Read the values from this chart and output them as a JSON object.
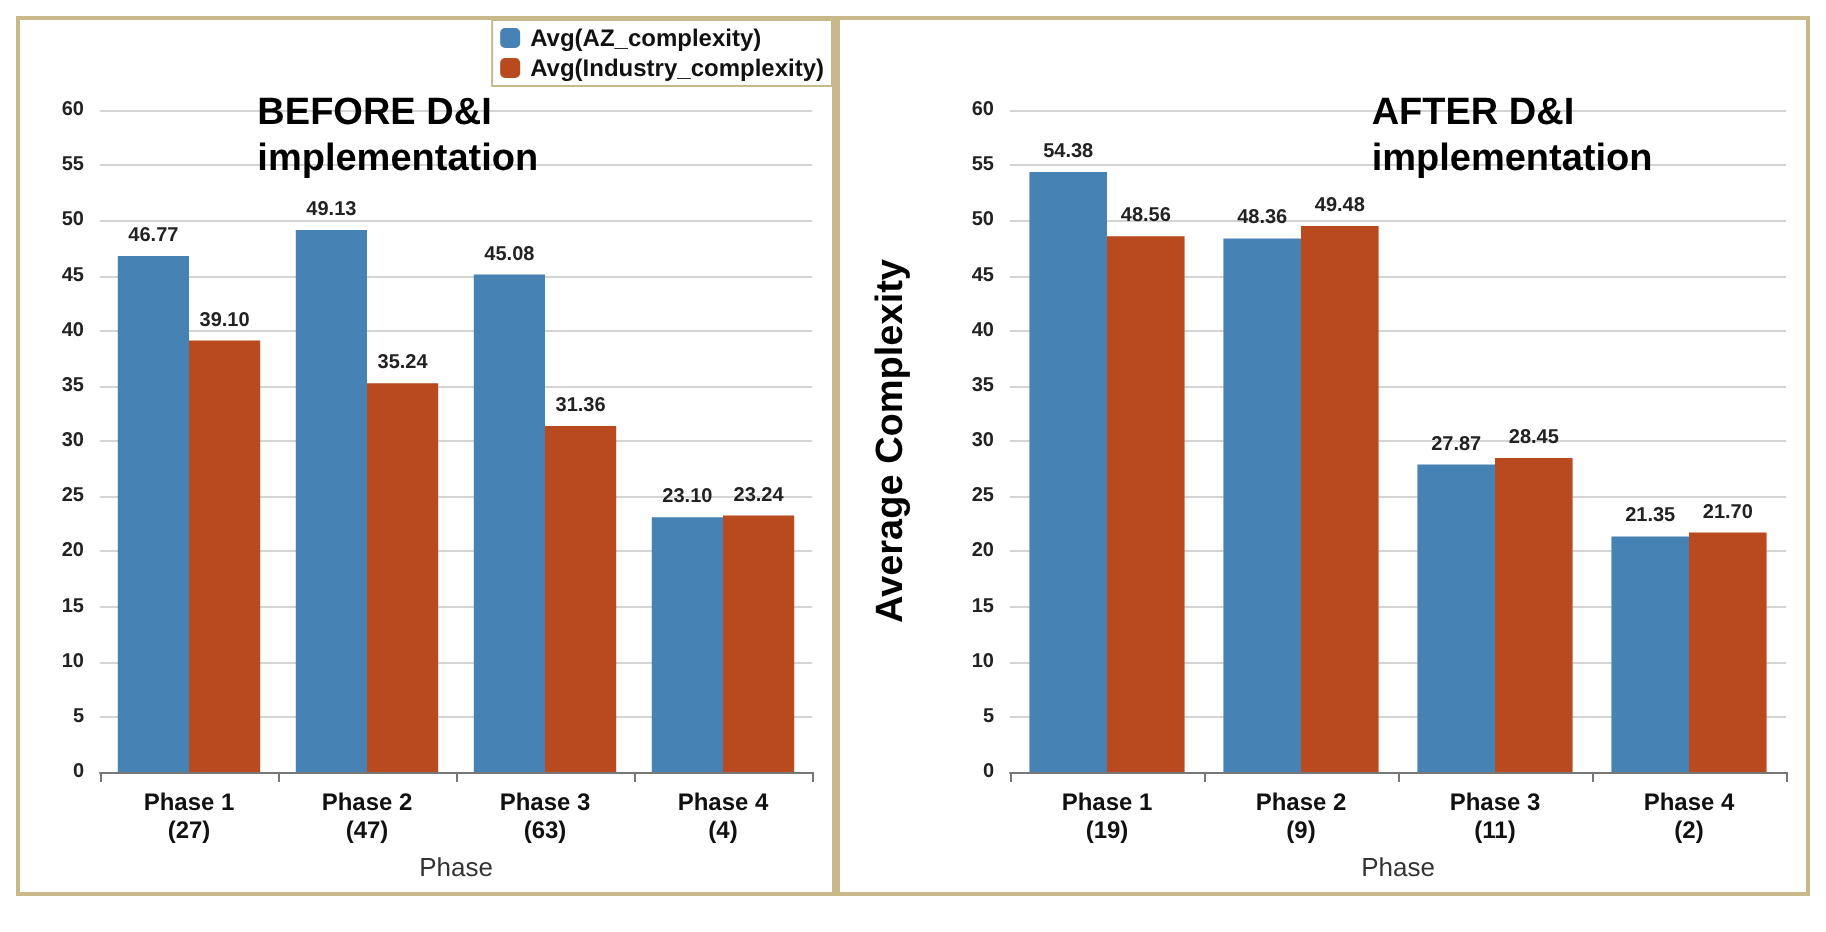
{
  "chart_data": [
    {
      "type": "bar",
      "title": "BEFORE D&I\nimplementation",
      "xlabel": "Phase",
      "categories": [
        "Phase 1\n(27)",
        "Phase 2\n(47)",
        "Phase 3\n(63)",
        "Phase 4\n(4)"
      ],
      "series": [
        {
          "name": "Avg(AZ_complexity)",
          "color": "#4682b4",
          "values": [
            46.77,
            49.13,
            45.08,
            23.1
          ],
          "value_labels": [
            "46.77",
            "49.13",
            "45.08",
            "23.10"
          ]
        },
        {
          "name": "Avg(Industry_complexity)",
          "color": "#b94a20",
          "values": [
            39.1,
            35.24,
            31.36,
            23.24
          ],
          "value_labels": [
            "39.10",
            "35.24",
            "31.36",
            "23.24"
          ]
        }
      ],
      "ylim": [
        0,
        60
      ],
      "yticks": [
        0,
        5,
        10,
        15,
        20,
        25,
        30,
        35,
        40,
        45,
        50,
        55,
        60
      ],
      "grid": "y",
      "legend": "top right"
    },
    {
      "type": "bar",
      "title": "AFTER D&I\nimplementation",
      "xlabel": "Phase",
      "ylabel": "Average Complexity",
      "categories": [
        "Phase 1\n(19)",
        "Phase 2\n(9)",
        "Phase 3\n(11)",
        "Phase 4\n(2)"
      ],
      "series": [
        {
          "color": "#4682b4",
          "values": [
            54.38,
            48.36,
            27.87,
            21.35
          ],
          "value_labels": [
            "54.38",
            "48.36",
            "27.87",
            "21.35"
          ]
        },
        {
          "color": "#b94a20",
          "values": [
            48.56,
            49.48,
            28.45,
            21.7
          ],
          "value_labels": [
            "48.56",
            "49.48",
            "28.45",
            "21.70"
          ]
        }
      ],
      "ylim": [
        0,
        60
      ],
      "yticks": [
        0,
        5,
        10,
        15,
        20,
        25,
        30,
        35,
        40,
        45,
        50,
        55,
        60
      ],
      "grid": "y"
    }
  ]
}
